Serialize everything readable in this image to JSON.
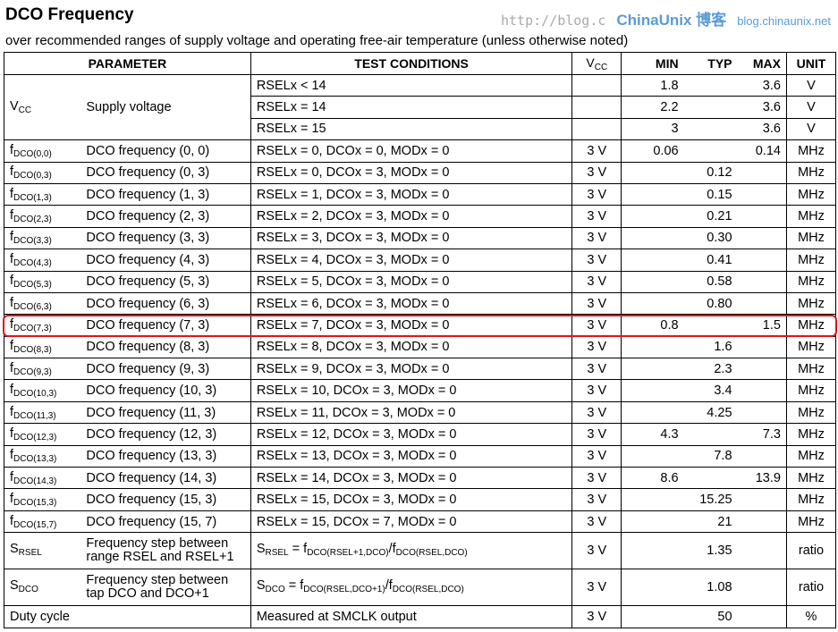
{
  "title": "DCO Frequency",
  "subtitle": "over recommended ranges of supply voltage and operating free-air temperature (unless otherwise noted)",
  "headers": {
    "parameter": "PARAMETER",
    "test": "TEST CONDITIONS",
    "vcc_base": "V",
    "vcc_sub": "CC",
    "min": "MIN",
    "typ": "TYP",
    "max": "MAX",
    "unit": "UNIT"
  },
  "vcc": {
    "sym": "V",
    "sub": "CC",
    "desc": "Supply voltage",
    "rows": [
      {
        "test": "RSELx < 14",
        "min": "1.8",
        "max": "3.6",
        "unit": "V"
      },
      {
        "test": "RSELx = 14",
        "min": "2.2",
        "max": "3.6",
        "unit": "V"
      },
      {
        "test": "RSELx = 15",
        "min": "3",
        "max": "3.6",
        "unit": "V"
      }
    ]
  },
  "rows": [
    {
      "sym": "f",
      "sub": "DCO(0,0)",
      "desc": "DCO frequency (0, 0)",
      "test": "RSELx = 0, DCOx = 0, MODx = 0",
      "vcc": "3 V",
      "min": "0.06",
      "typ": "",
      "max": "0.14",
      "unit": "MHz"
    },
    {
      "sym": "f",
      "sub": "DCO(0,3)",
      "desc": "DCO frequency (0, 3)",
      "test": "RSELx = 0, DCOx = 3, MODx = 0",
      "vcc": "3 V",
      "min": "",
      "typ": "0.12",
      "max": "",
      "unit": "MHz"
    },
    {
      "sym": "f",
      "sub": "DCO(1,3)",
      "desc": "DCO frequency (1, 3)",
      "test": "RSELx = 1, DCOx = 3, MODx = 0",
      "vcc": "3 V",
      "min": "",
      "typ": "0.15",
      "max": "",
      "unit": "MHz"
    },
    {
      "sym": "f",
      "sub": "DCO(2,3)",
      "desc": "DCO frequency (2, 3)",
      "test": "RSELx = 2, DCOx = 3, MODx = 0",
      "vcc": "3 V",
      "min": "",
      "typ": "0.21",
      "max": "",
      "unit": "MHz"
    },
    {
      "sym": "f",
      "sub": "DCO(3,3)",
      "desc": "DCO frequency (3, 3)",
      "test": "RSELx = 3, DCOx = 3, MODx = 0",
      "vcc": "3 V",
      "min": "",
      "typ": "0.30",
      "max": "",
      "unit": "MHz"
    },
    {
      "sym": "f",
      "sub": "DCO(4,3)",
      "desc": "DCO frequency (4, 3)",
      "test": "RSELx = 4, DCOx = 3, MODx = 0",
      "vcc": "3 V",
      "min": "",
      "typ": "0.41",
      "max": "",
      "unit": "MHz"
    },
    {
      "sym": "f",
      "sub": "DCO(5,3)",
      "desc": "DCO frequency (5, 3)",
      "test": "RSELx = 5, DCOx = 3, MODx = 0",
      "vcc": "3 V",
      "min": "",
      "typ": "0.58",
      "max": "",
      "unit": "MHz"
    },
    {
      "sym": "f",
      "sub": "DCO(6,3)",
      "desc": "DCO frequency (6, 3)",
      "test": "RSELx = 6, DCOx = 3, MODx = 0",
      "vcc": "3 V",
      "min": "",
      "typ": "0.80",
      "max": "",
      "unit": "MHz"
    },
    {
      "sym": "f",
      "sub": "DCO(7,3)",
      "desc": "DCO frequency (7, 3)",
      "test": "RSELx = 7, DCOx = 3, MODx = 0",
      "vcc": "3 V",
      "min": "0.8",
      "typ": "",
      "max": "1.5",
      "unit": "MHz"
    },
    {
      "sym": "f",
      "sub": "DCO(8,3)",
      "desc": "DCO frequency (8, 3)",
      "test": "RSELx = 8, DCOx = 3, MODx = 0",
      "vcc": "3 V",
      "min": "",
      "typ": "1.6",
      "max": "",
      "unit": "MHz"
    },
    {
      "sym": "f",
      "sub": "DCO(9,3)",
      "desc": "DCO frequency (9, 3)",
      "test": "RSELx = 9, DCOx = 3, MODx = 0",
      "vcc": "3 V",
      "min": "",
      "typ": "2.3",
      "max": "",
      "unit": "MHz"
    },
    {
      "sym": "f",
      "sub": "DCO(10,3)",
      "desc": "DCO frequency (10, 3)",
      "test": "RSELx = 10, DCOx = 3, MODx = 0",
      "vcc": "3 V",
      "min": "",
      "typ": "3.4",
      "max": "",
      "unit": "MHz"
    },
    {
      "sym": "f",
      "sub": "DCO(11,3)",
      "desc": "DCO frequency (11, 3)",
      "test": "RSELx = 11, DCOx = 3, MODx = 0",
      "vcc": "3 V",
      "min": "",
      "typ": "4.25",
      "max": "",
      "unit": "MHz"
    },
    {
      "sym": "f",
      "sub": "DCO(12,3)",
      "desc": "DCO frequency (12, 3)",
      "test": "RSELx = 12, DCOx = 3, MODx = 0",
      "vcc": "3 V",
      "min": "4.3",
      "typ": "",
      "max": "7.3",
      "unit": "MHz"
    },
    {
      "sym": "f",
      "sub": "DCO(13,3)",
      "desc": "DCO frequency (13, 3)",
      "test": "RSELx = 13, DCOx = 3, MODx = 0",
      "vcc": "3 V",
      "min": "",
      "typ": "7.8",
      "max": "",
      "unit": "MHz"
    },
    {
      "sym": "f",
      "sub": "DCO(14,3)",
      "desc": "DCO frequency (14, 3)",
      "test": "RSELx = 14, DCOx = 3, MODx = 0",
      "vcc": "3 V",
      "min": "8.6",
      "typ": "",
      "max": "13.9",
      "unit": "MHz"
    },
    {
      "sym": "f",
      "sub": "DCO(15,3)",
      "desc": "DCO frequency (15, 3)",
      "test": "RSELx = 15, DCOx = 3, MODx = 0",
      "vcc": "3 V",
      "min": "",
      "typ": "15.25",
      "max": "",
      "unit": "MHz"
    },
    {
      "sym": "f",
      "sub": "DCO(15,7)",
      "desc": "DCO frequency (15, 7)",
      "test": "RSELx = 15, DCOx = 7, MODx = 0",
      "vcc": "3 V",
      "min": "",
      "typ": "21",
      "max": "",
      "unit": "MHz"
    }
  ],
  "srsel": {
    "sym": "S",
    "sub": "RSEL",
    "desc1": "Frequency step between",
    "desc2": "range RSEL and RSEL+1",
    "t_s": "S",
    "t_ssub": "RSEL",
    "t_eq": " = f",
    "t_sub1": "DCO(RSEL+1,DCO)",
    "t_slash": "/f",
    "t_sub2": "DCO(RSEL,DCO)",
    "vcc": "3 V",
    "typ": "1.35",
    "unit": "ratio"
  },
  "sdco": {
    "sym": "S",
    "sub": "DCO",
    "desc1": "Frequency step between",
    "desc2": "tap DCO and DCO+1",
    "t_s": "S",
    "t_ssub": "DCO",
    "t_eq": " = f",
    "t_sub1": "DCO(RSEL,DCO+1)",
    "t_slash": "/f",
    "t_sub2": "DCO(RSEL,DCO)",
    "vcc": "3 V",
    "typ": "1.08",
    "unit": "ratio"
  },
  "duty": {
    "desc": "Duty cycle",
    "test": "Measured at SMCLK output",
    "vcc": "3 V",
    "typ": "50",
    "unit": "%"
  },
  "watermark": {
    "brand": "ChinaUnix 博客",
    "site": "blog.chinaunix.net",
    "url": "http://blog.c"
  },
  "highlight_color": "#e0141a"
}
